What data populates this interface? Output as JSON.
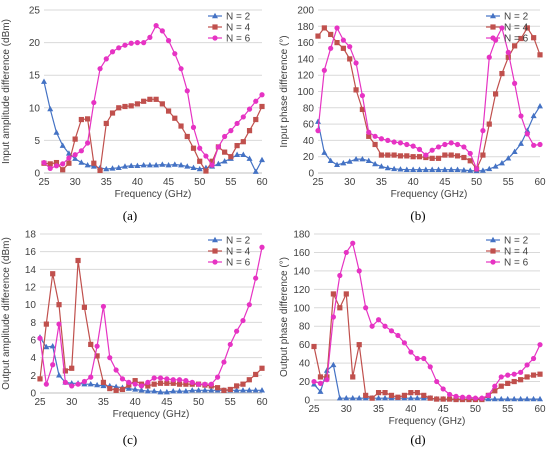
{
  "panel_labels": [
    "(a)",
    "(b)",
    "(c)",
    "(d)"
  ],
  "colors": {
    "n2": "#4472C4",
    "n4": "#C0504D",
    "n6": "#E633C3",
    "grid": "#D9D9D9",
    "axis": "#BFBFBF"
  },
  "chart_data": [
    {
      "type": "line",
      "xlabel": "Frequency (GHz)",
      "ylabel": "Input amplitude difference (dBm)",
      "xlim": [
        25,
        60
      ],
      "ylim": [
        0,
        25
      ],
      "xticks": [
        25,
        30,
        35,
        40,
        45,
        50,
        55,
        60
      ],
      "yticks": [
        0,
        5,
        10,
        15,
        20,
        25
      ],
      "legend": "top-right",
      "x": [
        25,
        26,
        27,
        28,
        29,
        30,
        31,
        32,
        33,
        34,
        35,
        36,
        37,
        38,
        39,
        40,
        41,
        42,
        43,
        44,
        45,
        46,
        47,
        48,
        49,
        50,
        51,
        52,
        53,
        54,
        55,
        56,
        57,
        58,
        59,
        60
      ],
      "series": [
        {
          "name": "N = 2",
          "marker": "triangle",
          "values": [
            14,
            9.8,
            6.2,
            4.2,
            3,
            2.2,
            1.6,
            1.2,
            1,
            0.8,
            0.6,
            0.7,
            0.8,
            1,
            1.1,
            1.1,
            1.2,
            1.2,
            1.2,
            1.3,
            1.2,
            1.3,
            1.2,
            1,
            0.8,
            0.6,
            0.8,
            1,
            1.4,
            1.8,
            2.2,
            2.8,
            2.8,
            2.2,
            0.2,
            2
          ]
        },
        {
          "name": "N = 4",
          "marker": "square",
          "values": [
            1.5,
            1.4,
            1.6,
            0.5,
            1.5,
            5.2,
            8.2,
            8.3,
            1.5,
            0.4,
            7.6,
            9.2,
            10,
            10.2,
            10.3,
            10.6,
            11,
            11.3,
            11.3,
            10.6,
            9.5,
            8.4,
            7.2,
            5.6,
            3.8,
            1.8,
            0.3,
            1.8,
            4,
            3.2,
            2.5,
            4.2,
            4.8,
            6.5,
            8.2,
            10.2
          ]
        },
        {
          "name": "N = 6",
          "marker": "circle",
          "values": [
            1.6,
            0.7,
            1.1,
            1.4,
            2.3,
            2.8,
            3.4,
            4.6,
            10.8,
            16,
            17.5,
            18.6,
            19.2,
            19.6,
            19.9,
            20,
            20,
            20.8,
            22.6,
            21.8,
            20.3,
            18.3,
            16,
            12.6,
            7,
            3.8,
            2.6,
            1.2,
            4,
            5.6,
            6.5,
            7.6,
            8.6,
            9.8,
            11,
            12
          ]
        }
      ]
    },
    {
      "type": "line",
      "xlabel": "Frequency (GHz)",
      "ylabel": "Input phase difference (°)",
      "xlim": [
        25,
        60
      ],
      "ylim": [
        0,
        200
      ],
      "xticks": [
        25,
        30,
        35,
        40,
        45,
        50,
        55,
        60
      ],
      "yticks": [
        0,
        20,
        40,
        60,
        80,
        100,
        120,
        140,
        160,
        180,
        200
      ],
      "legend": "top-right",
      "x": [
        25,
        26,
        27,
        28,
        29,
        30,
        31,
        32,
        33,
        34,
        35,
        36,
        37,
        38,
        39,
        40,
        41,
        42,
        43,
        44,
        45,
        46,
        47,
        48,
        49,
        50,
        51,
        52,
        53,
        54,
        55,
        56,
        57,
        58,
        59,
        60
      ],
      "series": [
        {
          "name": "N = 2",
          "marker": "triangle",
          "values": [
            63,
            25,
            15,
            10,
            12,
            14,
            17,
            17,
            15,
            11,
            8,
            6,
            5,
            4.5,
            4,
            4,
            4,
            4,
            4,
            4,
            4,
            4,
            4,
            3.5,
            3,
            2.5,
            3,
            5,
            8,
            12,
            18,
            26,
            36,
            52,
            70,
            82
          ]
        },
        {
          "name": "N = 4",
          "marker": "square",
          "values": [
            168,
            178,
            170,
            160,
            153,
            140,
            102,
            78,
            45,
            35,
            22,
            22,
            22,
            21,
            21,
            20,
            20,
            19,
            18,
            18,
            22,
            22,
            21,
            19,
            15,
            5,
            22,
            60,
            97,
            122,
            142,
            156,
            165,
            178,
            166,
            145
          ]
        },
        {
          "name": "N = 6",
          "marker": "circle",
          "values": [
            52,
            126,
            153,
            178,
            163,
            155,
            135,
            95,
            50,
            45,
            42,
            40,
            38,
            37,
            35,
            33,
            29,
            22,
            28,
            32,
            35,
            37,
            35,
            32,
            24,
            5,
            52,
            142,
            163,
            178,
            148,
            110,
            70,
            48,
            34,
            35
          ]
        }
      ]
    },
    {
      "type": "line",
      "xlabel": "Frequency (GHz)",
      "ylabel": "Output amplitude difference (dBm)",
      "xlim": [
        25,
        60
      ],
      "ylim": [
        0,
        18
      ],
      "xticks": [
        25,
        30,
        35,
        40,
        45,
        50,
        55,
        60
      ],
      "yticks": [
        0,
        2,
        4,
        6,
        8,
        10,
        12,
        14,
        16,
        18
      ],
      "legend": "top-right",
      "x": [
        25,
        26,
        27,
        28,
        29,
        30,
        31,
        32,
        33,
        34,
        35,
        36,
        37,
        38,
        39,
        40,
        41,
        42,
        43,
        44,
        45,
        46,
        47,
        48,
        49,
        50,
        51,
        52,
        53,
        54,
        55,
        56,
        57,
        58,
        59,
        60
      ],
      "series": [
        {
          "name": "N = 2",
          "marker": "triangle",
          "values": [
            6.3,
            5.2,
            5.3,
            2,
            1.2,
            1.1,
            1.1,
            1,
            1,
            0.9,
            0.8,
            0.8,
            0.7,
            0.6,
            0.5,
            0.4,
            0.3,
            0.2,
            0.2,
            0.1,
            0.1,
            0.2,
            0.2,
            0.2,
            0.3,
            0.3,
            0.3,
            0.3,
            0.3,
            0.3,
            0.3,
            0.3,
            0.3,
            0.3,
            0.3,
            0.3
          ]
        },
        {
          "name": "N = 4",
          "marker": "square",
          "values": [
            1.6,
            7.8,
            13.5,
            10,
            2.5,
            2.8,
            15,
            9.7,
            5.5,
            4.2,
            1.2,
            0.5,
            0.3,
            0.4,
            0.9,
            1.4,
            1,
            0.8,
            1,
            1.1,
            1.1,
            1.1,
            1,
            1,
            1,
            1,
            0.9,
            0.8,
            0.6,
            0.3,
            0.4,
            0.8,
            1,
            1.5,
            2.1,
            2.8
          ]
        },
        {
          "name": "N = 6",
          "marker": "circle",
          "values": [
            6.2,
            1,
            3.2,
            7.8,
            1.2,
            0.8,
            1,
            1.3,
            1.8,
            5.3,
            9.8,
            4,
            2.6,
            1.6,
            1.2,
            1,
            0.8,
            1.2,
            1.7,
            1.7,
            1.6,
            1.5,
            1.5,
            1.4,
            1.2,
            1,
            1,
            1,
            1.8,
            3.5,
            5.5,
            7,
            8.2,
            10,
            13,
            16.5
          ]
        }
      ]
    },
    {
      "type": "line",
      "xlabel": "Frequency (GHz)",
      "ylabel": "Output phase difference (°)",
      "xlim": [
        25,
        60
      ],
      "ylim": [
        0,
        180
      ],
      "xticks": [
        25,
        30,
        35,
        40,
        45,
        50,
        55,
        60
      ],
      "yticks": [
        0,
        20,
        40,
        60,
        80,
        100,
        120,
        140,
        160,
        180
      ],
      "legend": "top-right",
      "x": [
        25,
        26,
        27,
        28,
        29,
        30,
        31,
        32,
        33,
        34,
        35,
        36,
        37,
        38,
        39,
        40,
        41,
        42,
        43,
        44,
        45,
        46,
        47,
        48,
        49,
        50,
        51,
        52,
        53,
        54,
        55,
        56,
        57,
        58,
        59,
        60
      ],
      "series": [
        {
          "name": "N = 2",
          "marker": "triangle",
          "values": [
            17,
            9,
            32,
            38,
            2,
            2,
            2,
            2,
            2,
            2,
            2,
            2,
            2,
            2,
            2,
            2,
            2,
            2,
            2,
            1,
            1,
            1,
            1,
            1,
            1,
            1,
            1,
            1,
            1,
            1,
            1,
            1,
            1,
            1,
            1,
            1
          ]
        },
        {
          "name": "N = 4",
          "marker": "square",
          "values": [
            58,
            25,
            25,
            115,
            100,
            115,
            25,
            60,
            5,
            2,
            8,
            8,
            5,
            3,
            5,
            8,
            8,
            5,
            2,
            1,
            1,
            1,
            0.5,
            0.5,
            0.5,
            0.5,
            0.5,
            5,
            10,
            15,
            18,
            20,
            22,
            25,
            27,
            28
          ]
        },
        {
          "name": "N = 6",
          "marker": "circle",
          "values": [
            20,
            18,
            22,
            90,
            135,
            160,
            170,
            140,
            100,
            80,
            87,
            80,
            75,
            70,
            62,
            52,
            45,
            45,
            36,
            20,
            12,
            6,
            4,
            3,
            3,
            2,
            2,
            5,
            15,
            25,
            27,
            28,
            30,
            38,
            45,
            60
          ]
        }
      ]
    }
  ]
}
